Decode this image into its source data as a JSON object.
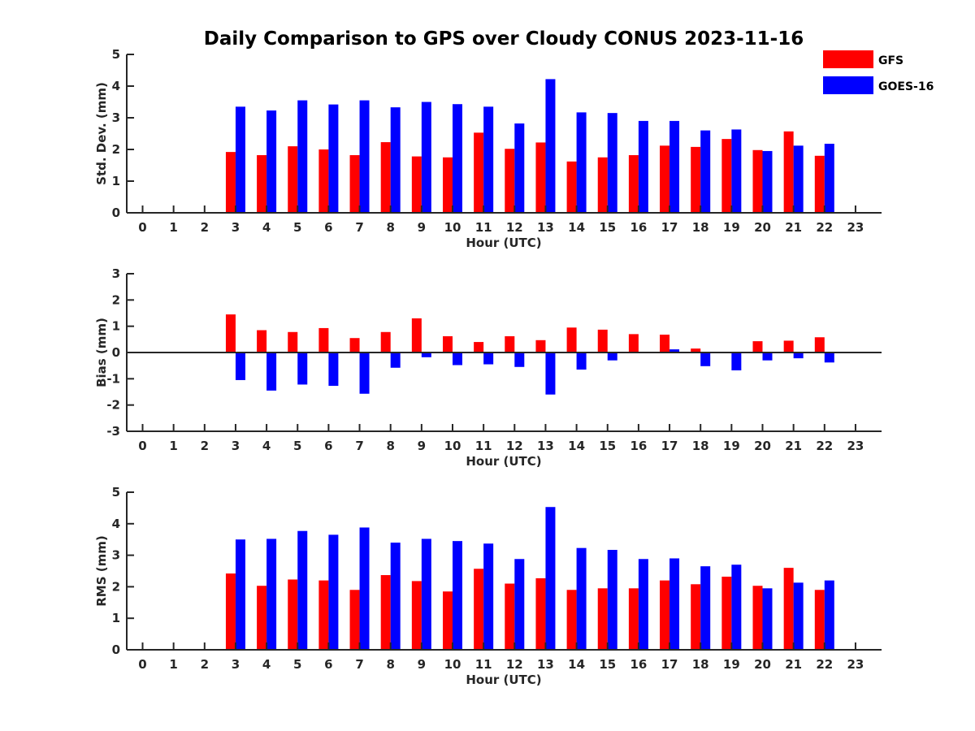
{
  "title": "Daily Comparison to GPS over Cloudy CONUS 2023-11-16",
  "colors": {
    "gfs": "#ff0000",
    "goes": "#0000ff",
    "axis": "#262626"
  },
  "legend": {
    "placement": "top-right",
    "entries": [
      "GFS",
      "GOES-16"
    ]
  },
  "chart_data": [
    {
      "type": "bar",
      "xlabel": "Hour (UTC)",
      "ylabel": "Std. Dev. (mm)",
      "ylim": [
        0,
        5
      ],
      "yticks": [
        0,
        1,
        2,
        3,
        4,
        5
      ],
      "categories": [
        "0",
        "1",
        "2",
        "3",
        "4",
        "5",
        "6",
        "7",
        "8",
        "9",
        "10",
        "11",
        "12",
        "13",
        "14",
        "15",
        "16",
        "17",
        "18",
        "19",
        "20",
        "21",
        "22",
        "23"
      ],
      "series": [
        {
          "name": "GFS",
          "values": [
            null,
            null,
            null,
            1.92,
            1.82,
            2.1,
            2.0,
            1.82,
            2.23,
            1.78,
            1.75,
            2.53,
            2.02,
            2.22,
            1.62,
            1.75,
            1.82,
            2.12,
            2.08,
            2.33,
            1.98,
            2.57,
            1.8,
            null
          ]
        },
        {
          "name": "GOES-16",
          "values": [
            null,
            null,
            null,
            3.35,
            3.23,
            3.55,
            3.42,
            3.55,
            3.33,
            3.5,
            3.43,
            3.35,
            2.82,
            4.22,
            3.17,
            3.15,
            2.9,
            2.9,
            2.6,
            2.63,
            1.95,
            2.12,
            2.18,
            null
          ]
        }
      ]
    },
    {
      "type": "bar",
      "xlabel": "Hour (UTC)",
      "ylabel": "Bias (mm)",
      "ylim": [
        -3,
        3
      ],
      "yticks": [
        -3,
        -2,
        -1,
        0,
        1,
        2,
        3
      ],
      "categories": [
        "0",
        "1",
        "2",
        "3",
        "4",
        "5",
        "6",
        "7",
        "8",
        "9",
        "10",
        "11",
        "12",
        "13",
        "14",
        "15",
        "16",
        "17",
        "18",
        "19",
        "20",
        "21",
        "22",
        "23"
      ],
      "series": [
        {
          "name": "GFS",
          "values": [
            null,
            null,
            null,
            1.45,
            0.85,
            0.78,
            0.93,
            0.55,
            0.78,
            1.3,
            0.62,
            0.4,
            0.62,
            0.47,
            0.95,
            0.87,
            0.7,
            0.68,
            0.15,
            0.02,
            0.43,
            0.45,
            0.58,
            null
          ]
        },
        {
          "name": "GOES-16",
          "values": [
            null,
            null,
            null,
            -1.05,
            -1.45,
            -1.22,
            -1.27,
            -1.57,
            -0.58,
            -0.18,
            -0.48,
            -0.45,
            -0.55,
            -1.6,
            -0.65,
            -0.3,
            0.03,
            0.12,
            -0.52,
            -0.68,
            -0.3,
            -0.22,
            -0.38,
            null
          ]
        }
      ]
    },
    {
      "type": "bar",
      "xlabel": "Hour (UTC)",
      "ylabel": "RMS (mm)",
      "ylim": [
        0,
        5
      ],
      "yticks": [
        0,
        1,
        2,
        3,
        4,
        5
      ],
      "categories": [
        "0",
        "1",
        "2",
        "3",
        "4",
        "5",
        "6",
        "7",
        "8",
        "9",
        "10",
        "11",
        "12",
        "13",
        "14",
        "15",
        "16",
        "17",
        "18",
        "19",
        "20",
        "21",
        "22",
        "23"
      ],
      "series": [
        {
          "name": "GFS",
          "values": [
            null,
            null,
            null,
            2.42,
            2.03,
            2.23,
            2.2,
            1.9,
            2.37,
            2.18,
            1.85,
            2.57,
            2.1,
            2.27,
            1.9,
            1.95,
            1.95,
            2.2,
            2.08,
            2.32,
            2.03,
            2.6,
            1.9,
            null
          ]
        },
        {
          "name": "GOES-16",
          "values": [
            null,
            null,
            null,
            3.5,
            3.52,
            3.77,
            3.65,
            3.88,
            3.4,
            3.52,
            3.45,
            3.37,
            2.88,
            4.53,
            3.23,
            3.17,
            2.88,
            2.9,
            2.65,
            2.7,
            1.95,
            2.13,
            2.2,
            null
          ]
        }
      ]
    }
  ]
}
